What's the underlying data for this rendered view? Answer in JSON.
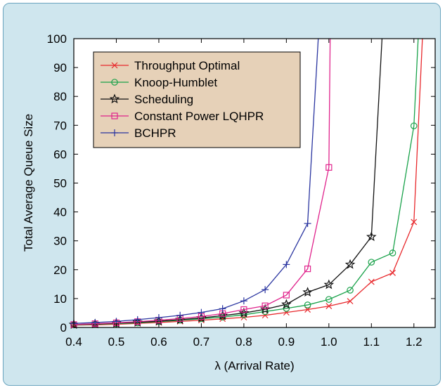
{
  "chart_data": {
    "type": "line",
    "xlabel": "λ (Arrival Rate)",
    "ylabel": "Total Average Queue Size",
    "xlim": [
      0.4,
      1.25
    ],
    "ylim": [
      0,
      100
    ],
    "xticks": [
      "0.4",
      "0.5",
      "0.6",
      "0.7",
      "0.8",
      "0.9",
      "1.0",
      "1.1",
      "1.2"
    ],
    "yticks": [
      "0",
      "10",
      "20",
      "30",
      "40",
      "50",
      "60",
      "70",
      "80",
      "90",
      "100"
    ],
    "grid": false,
    "legend_position": "top-left",
    "series": [
      {
        "name": "Throughput Optimal",
        "color": "#e8282c",
        "marker": "x",
        "x": [
          0.4,
          0.45,
          0.5,
          0.55,
          0.6,
          0.65,
          0.7,
          0.75,
          0.8,
          0.85,
          0.9,
          0.95,
          1.0,
          1.05,
          1.1,
          1.15,
          1.2,
          1.22
        ],
        "y": [
          0.8,
          0.9,
          1.1,
          1.4,
          1.7,
          2.1,
          2.5,
          3.0,
          3.5,
          4.2,
          5.2,
          6.2,
          7.4,
          9.1,
          15.8,
          18.9,
          36.5,
          100
        ]
      },
      {
        "name": "Knoop-Humblet",
        "color": "#19a24a",
        "marker": "circle",
        "x": [
          0.4,
          0.45,
          0.5,
          0.55,
          0.6,
          0.65,
          0.7,
          0.75,
          0.8,
          0.85,
          0.9,
          0.95,
          1.0,
          1.05,
          1.1,
          1.15,
          1.2,
          1.21
        ],
        "y": [
          0.9,
          1.1,
          1.3,
          1.6,
          2.0,
          2.5,
          3.0,
          3.6,
          4.4,
          5.5,
          6.6,
          7.8,
          9.7,
          12.9,
          22.6,
          25.8,
          69.8,
          100
        ]
      },
      {
        "name": "Scheduling",
        "color": "#111111",
        "marker": "star",
        "x": [
          0.4,
          0.45,
          0.5,
          0.55,
          0.6,
          0.65,
          0.7,
          0.75,
          0.8,
          0.85,
          0.9,
          0.95,
          1.0,
          1.05,
          1.1,
          1.125
        ],
        "y": [
          1.0,
          1.2,
          1.5,
          1.8,
          2.2,
          2.7,
          3.3,
          4.1,
          5.0,
          6.3,
          8.0,
          12.2,
          14.8,
          21.8,
          31.4,
          100
        ]
      },
      {
        "name": "Constant Power LQHPR",
        "color": "#e0238c",
        "marker": "square",
        "x": [
          0.4,
          0.45,
          0.5,
          0.55,
          0.6,
          0.65,
          0.7,
          0.75,
          0.8,
          0.85,
          0.9,
          0.95,
          1.0,
          1.003
        ],
        "y": [
          1.0,
          1.3,
          1.6,
          2.0,
          2.5,
          3.1,
          3.8,
          4.8,
          6.2,
          7.5,
          11.2,
          20.3,
          55.4,
          100
        ]
      },
      {
        "name": "BCHPR",
        "color": "#2a35a0",
        "marker": "plus",
        "x": [
          0.4,
          0.45,
          0.5,
          0.55,
          0.6,
          0.65,
          0.7,
          0.75,
          0.8,
          0.85,
          0.9,
          0.95,
          0.975
        ],
        "y": [
          1.4,
          1.7,
          2.1,
          2.7,
          3.4,
          4.2,
          5.2,
          6.5,
          9.2,
          13.1,
          21.8,
          36.0,
          100
        ]
      }
    ]
  }
}
